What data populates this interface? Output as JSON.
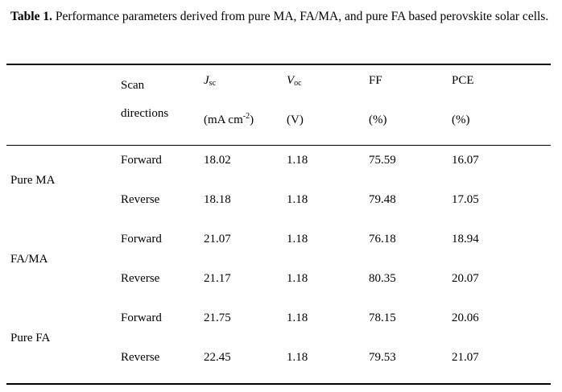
{
  "caption": {
    "label": "Table 1.",
    "text": " Performance parameters derived from pure MA, FA/MA, and pure FA based perovskite solar cells."
  },
  "header": {
    "scan_line1": "Scan",
    "scan_line2": "directions",
    "jsc_symbol": "J",
    "jsc_sub": "sc",
    "jsc_unit_pre": "(mA cm",
    "jsc_unit_sup": "-2",
    "jsc_unit_post": ")",
    "voc_symbol": "V",
    "voc_sub": "oc",
    "voc_unit": "(V)",
    "ff": "FF",
    "ff_unit": "(%)",
    "pce": "PCE",
    "pce_unit": "(%)"
  },
  "rows": [
    {
      "group": "Pure MA",
      "forward": {
        "dir": "Forward",
        "jsc": "18.02",
        "voc": "1.18",
        "ff": "75.59",
        "pce": "16.07"
      },
      "reverse": {
        "dir": "Reverse",
        "jsc": "18.18",
        "voc": "1.18",
        "ff": "79.48",
        "pce": "17.05"
      }
    },
    {
      "group": "FA/MA",
      "forward": {
        "dir": "Forward",
        "jsc": "21.07",
        "voc": "1.18",
        "ff": "76.18",
        "pce": "18.94"
      },
      "reverse": {
        "dir": "Reverse",
        "jsc": "21.17",
        "voc": "1.18",
        "ff": "80.35",
        "pce": "20.07"
      }
    },
    {
      "group": "Pure FA",
      "forward": {
        "dir": "Forward",
        "jsc": "21.75",
        "voc": "1.18",
        "ff": "78.15",
        "pce": "20.06"
      },
      "reverse": {
        "dir": "Reverse",
        "jsc": "22.45",
        "voc": "1.18",
        "ff": "79.53",
        "pce": "21.07"
      }
    }
  ]
}
